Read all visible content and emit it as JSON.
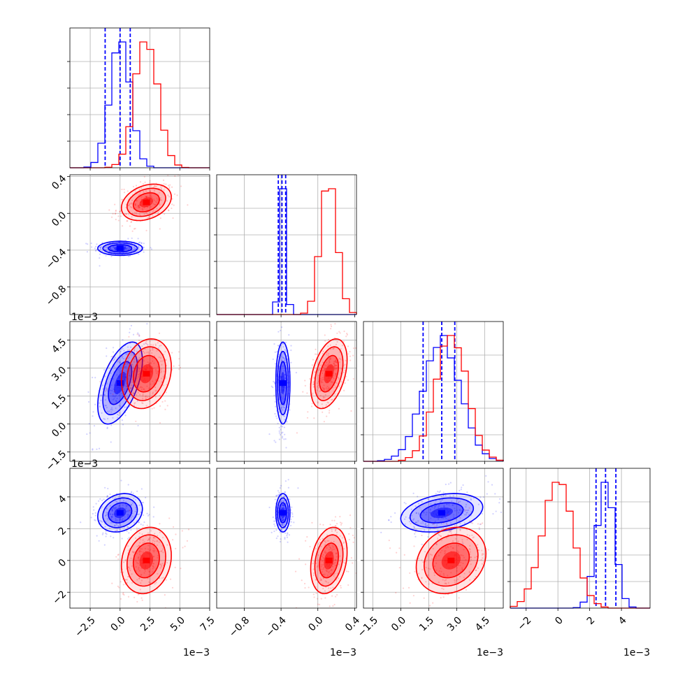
{
  "chart_data": {
    "type": "corner",
    "parameters": [
      {
        "range": [
          -4.2,
          7.5
        ],
        "ticks": [
          "−2.5",
          "0.0",
          "2.5",
          "5.0",
          "7.5"
        ],
        "tick_values": [
          -2.5,
          0.0,
          2.5,
          5.0,
          7.5
        ],
        "offset": "1e−3"
      },
      {
        "range": [
          -1.1,
          0.42
        ],
        "ticks": [
          "−0.8",
          "−0.4",
          "0.0",
          "0.4"
        ],
        "tick_values": [
          -0.8,
          -0.4,
          0.0,
          0.4
        ],
        "offset": "1e−3"
      },
      {
        "range": [
          -2.0,
          5.5
        ],
        "ticks": [
          "−1.5",
          "0.0",
          "1.5",
          "3.0",
          "4.5"
        ],
        "tick_values": [
          -1.5,
          0.0,
          1.5,
          3.0,
          4.5
        ],
        "offset": "1e−3"
      },
      {
        "range": [
          -3.0,
          5.8
        ],
        "ticks": [
          "−2",
          "0",
          "2",
          "4"
        ],
        "tick_values": [
          -2,
          0,
          2,
          4
        ],
        "offset": "1e−3"
      }
    ],
    "series": [
      {
        "color": "#0000ff",
        "mean": [
          0.0,
          -0.38,
          2.2,
          3.0
        ],
        "sigma": [
          0.85,
          0.035,
          1.0,
          0.55
        ],
        "corr": [
          [
            1,
            0,
            0.55,
            0.2
          ],
          [
            0,
            1,
            0,
            0
          ],
          [
            0.55,
            0,
            1,
            0.3
          ],
          [
            0.2,
            0,
            0.3,
            1
          ]
        ],
        "quantiles": [
          [
            -1.25,
            0.0,
            0.85
          ],
          [
            -0.43,
            -0.39,
            -0.35
          ],
          [
            1.2,
            2.2,
            2.9
          ],
          [
            2.4,
            3.0,
            3.65
          ]
        ]
      },
      {
        "color": "#ff0000",
        "mean": [
          2.2,
          0.12,
          2.7,
          0.0
        ],
        "sigma": [
          0.95,
          0.09,
          0.85,
          0.95
        ],
        "corr": [
          [
            1,
            0.3,
            0.2,
            0.15
          ],
          [
            0.3,
            1,
            0.4,
            0.25
          ],
          [
            0.2,
            0.4,
            1,
            0.2
          ],
          [
            0.15,
            0.25,
            0.2,
            1
          ]
        ],
        "quantiles": null
      }
    ]
  }
}
